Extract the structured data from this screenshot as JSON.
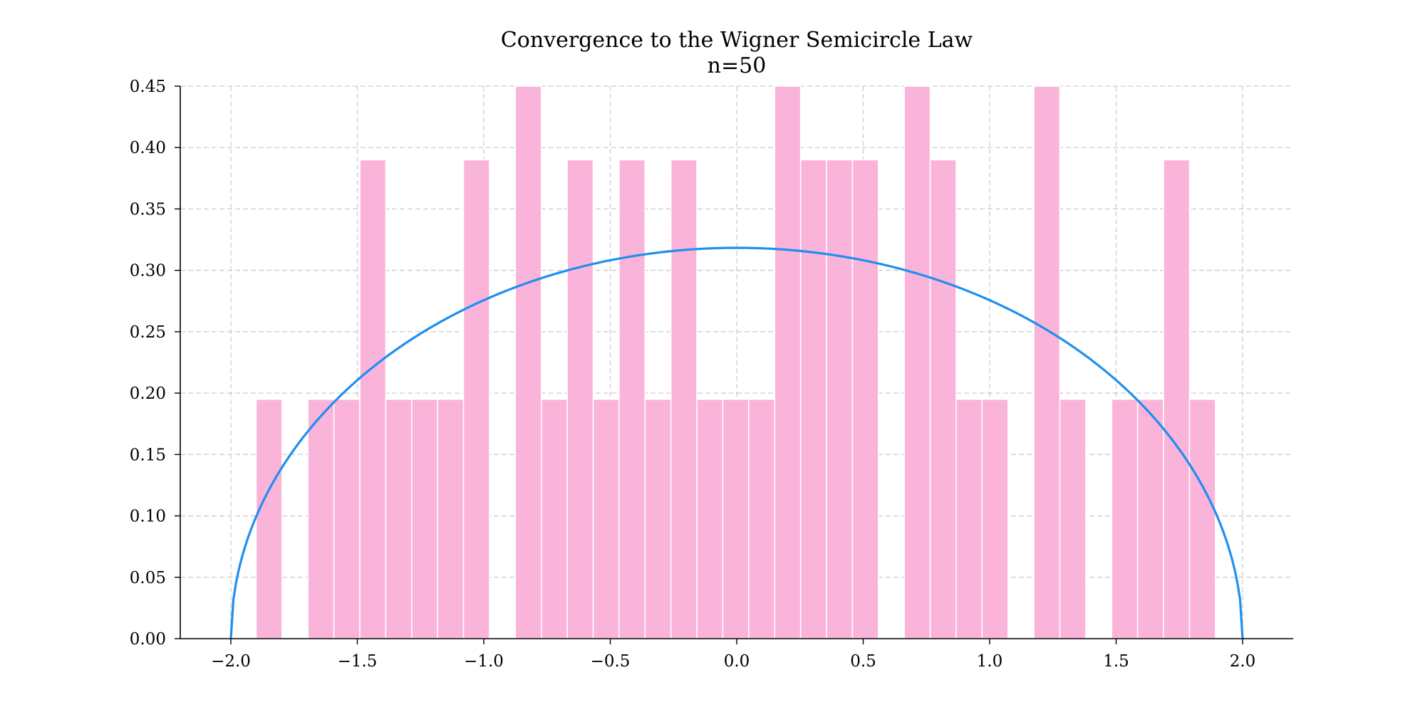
{
  "chart_data": {
    "type": "bar",
    "title": "Convergence to the Wigner Semicircle Law",
    "subtitle": "n=50",
    "xlabel": "",
    "ylabel": "",
    "xlim": [
      -2.2,
      2.2
    ],
    "ylim": [
      0,
      0.45
    ],
    "xticks": [
      "−2.0",
      "−1.5",
      "−1.0",
      "−0.5",
      "0.0",
      "0.5",
      "1.0",
      "1.5",
      "2.0"
    ],
    "xtick_values": [
      -2.0,
      -1.5,
      -1.0,
      -0.5,
      0.0,
      0.5,
      1.0,
      1.5,
      2.0
    ],
    "yticks": [
      "0.00",
      "0.05",
      "0.10",
      "0.15",
      "0.20",
      "0.25",
      "0.30",
      "0.35",
      "0.40",
      "0.45"
    ],
    "ytick_values": [
      0.0,
      0.05,
      0.1,
      0.15,
      0.2,
      0.25,
      0.3,
      0.35,
      0.4,
      0.45
    ],
    "grid": true,
    "bin_start": -1.9,
    "bin_width": 0.1025,
    "bars": [
      0.195,
      0.0,
      0.195,
      0.195,
      0.39,
      0.195,
      0.195,
      0.195,
      0.39,
      0.0,
      0.45,
      0.195,
      0.39,
      0.195,
      0.39,
      0.195,
      0.39,
      0.195,
      0.195,
      0.195,
      0.45,
      0.39,
      0.39,
      0.39,
      0.0,
      0.45,
      0.39,
      0.195,
      0.195,
      0.0,
      0.45,
      0.195,
      0.0,
      0.195,
      0.195,
      0.39,
      0.195
    ],
    "curve": {
      "type": "line",
      "function": "semicircle",
      "x_range": [
        -2.0,
        2.0
      ],
      "peak": 0.318
    },
    "colors": {
      "bar_fill": "#fbb4d9",
      "bar_edge": "#ffffff",
      "curve": "#1e8ff0",
      "grid": "#c8ccd2",
      "axis": "#000000"
    }
  }
}
